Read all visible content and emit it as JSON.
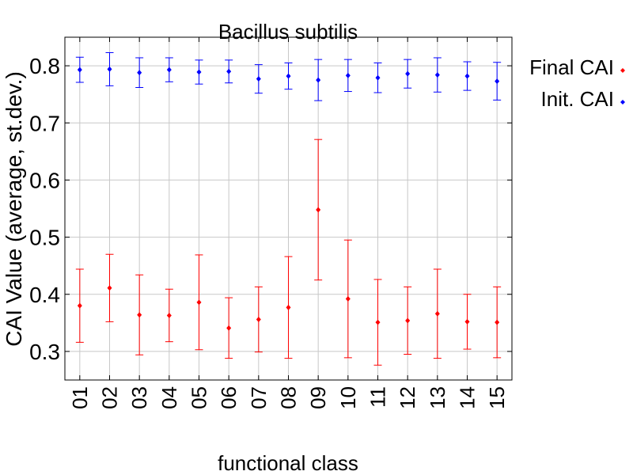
{
  "chart_data": {
    "type": "scatter",
    "title": "Bacillus subtilis",
    "xlabel": "functional class",
    "ylabel": "CAI Value (average, st.dev.)",
    "categories": [
      "01",
      "02",
      "03",
      "04",
      "05",
      "06",
      "07",
      "08",
      "09",
      "10",
      "11",
      "12",
      "13",
      "14",
      "15"
    ],
    "ylim": [
      0.25,
      0.85
    ],
    "yticks": [
      0.3,
      0.4,
      0.5,
      0.6,
      0.7,
      0.8
    ],
    "ytick_labels": [
      "0.3",
      "0.4",
      "0.5",
      "0.6",
      "0.7",
      "0.8"
    ],
    "grid": true,
    "legend_position": "right outside",
    "series": [
      {
        "name": "Final CAI",
        "color": "#ff0000",
        "values": [
          0.38,
          0.411,
          0.364,
          0.363,
          0.386,
          0.341,
          0.356,
          0.377,
          0.548,
          0.392,
          0.351,
          0.354,
          0.366,
          0.352,
          0.351
        ],
        "stdev": [
          0.064,
          0.059,
          0.07,
          0.046,
          0.083,
          0.053,
          0.057,
          0.089,
          0.123,
          0.103,
          0.075,
          0.059,
          0.078,
          0.048,
          0.062
        ]
      },
      {
        "name": "Init. CAI",
        "color": "#0000ff",
        "values": [
          0.793,
          0.794,
          0.788,
          0.793,
          0.789,
          0.79,
          0.777,
          0.782,
          0.775,
          0.783,
          0.779,
          0.786,
          0.784,
          0.782,
          0.773
        ],
        "stdev": [
          0.022,
          0.029,
          0.026,
          0.021,
          0.021,
          0.02,
          0.025,
          0.023,
          0.036,
          0.028,
          0.026,
          0.025,
          0.03,
          0.025,
          0.033
        ]
      }
    ]
  }
}
